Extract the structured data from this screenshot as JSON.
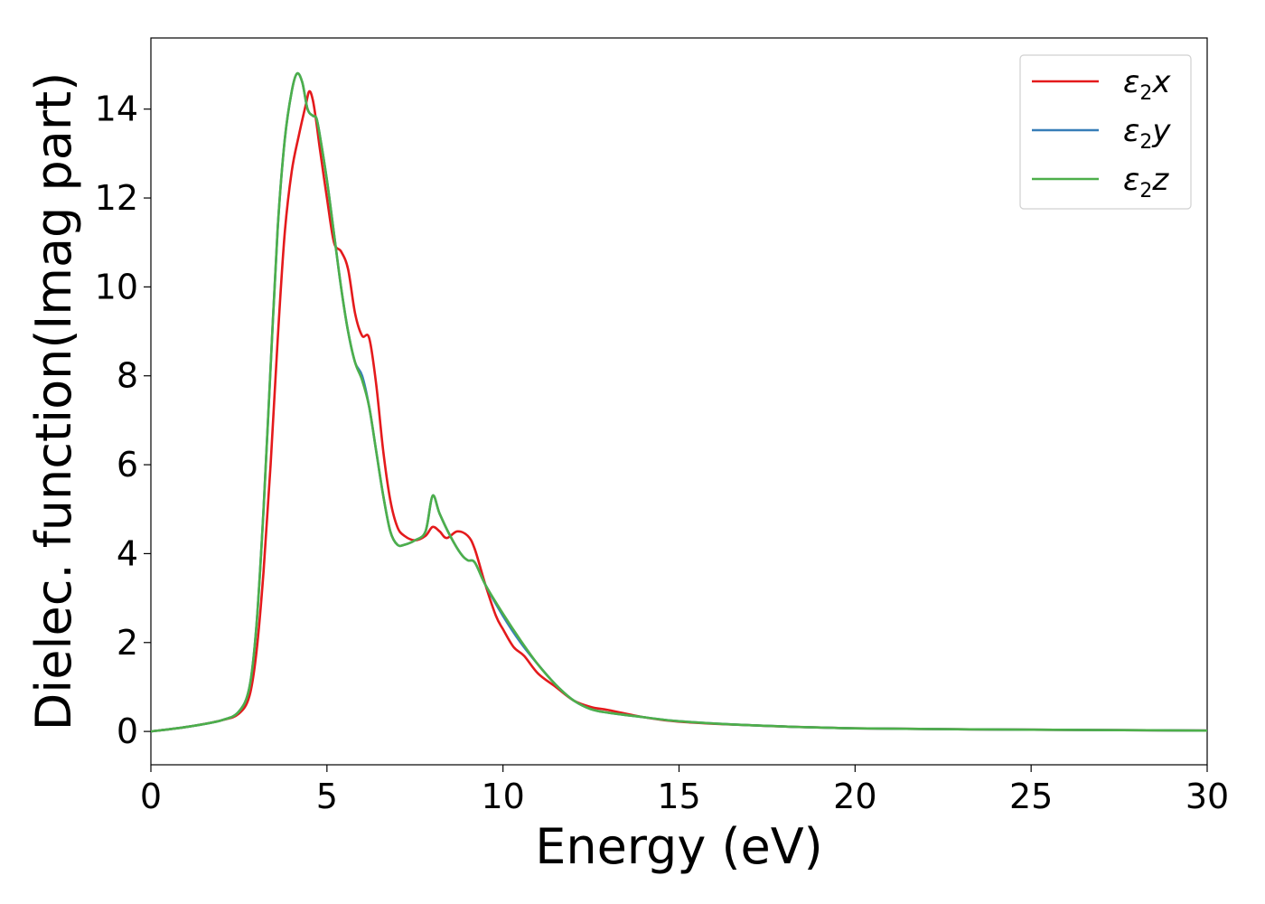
{
  "chart_data": {
    "type": "line",
    "xlabel": "Energy (eV)",
    "ylabel": "Dielec. function(Imag part)",
    "xlim": [
      0,
      30
    ],
    "ylim": [
      -0.75,
      15.6
    ],
    "xticks": [
      0,
      5,
      10,
      15,
      20,
      25,
      30
    ],
    "yticks": [
      0,
      2,
      4,
      6,
      8,
      10,
      12,
      14
    ],
    "grid": false,
    "legend_position": "top-right",
    "series": [
      {
        "name": "ε2x",
        "legend": {
          "base": "ε",
          "sub": "2",
          "var": "x"
        },
        "color": "#e41a1c",
        "x": [
          0,
          1,
          2,
          2.5,
          2.8,
          3.0,
          3.2,
          3.4,
          3.6,
          3.8,
          4.0,
          4.2,
          4.4,
          4.5,
          4.6,
          4.7,
          4.8,
          5.0,
          5.2,
          5.4,
          5.6,
          5.8,
          6.0,
          6.2,
          6.4,
          6.6,
          6.8,
          7.0,
          7.2,
          7.5,
          7.8,
          8.0,
          8.2,
          8.4,
          8.7,
          9.0,
          9.2,
          9.5,
          9.8,
          10.0,
          10.3,
          10.6,
          11.0,
          11.5,
          12.0,
          12.5,
          13.0,
          14.0,
          15.0,
          17.0,
          20.0,
          25.0,
          30.0
        ],
        "values": [
          0,
          0.1,
          0.25,
          0.4,
          0.8,
          1.8,
          3.6,
          6.0,
          8.8,
          11.2,
          12.6,
          13.4,
          14.1,
          14.4,
          14.2,
          13.7,
          13.1,
          12.0,
          11.0,
          10.8,
          10.4,
          9.4,
          8.9,
          8.85,
          7.8,
          6.3,
          5.2,
          4.6,
          4.4,
          4.3,
          4.4,
          4.6,
          4.5,
          4.35,
          4.5,
          4.4,
          4.1,
          3.3,
          2.6,
          2.3,
          1.9,
          1.7,
          1.3,
          1.0,
          0.7,
          0.55,
          0.48,
          0.32,
          0.22,
          0.14,
          0.07,
          0.04,
          0.02
        ]
      },
      {
        "name": "ε2y",
        "legend": {
          "base": "ε",
          "sub": "2",
          "var": "y"
        },
        "color": "#377eb8",
        "x": [
          0,
          1,
          2,
          2.5,
          2.8,
          3.0,
          3.2,
          3.4,
          3.6,
          3.8,
          4.0,
          4.15,
          4.3,
          4.45,
          4.6,
          4.7,
          4.8,
          5.0,
          5.2,
          5.4,
          5.6,
          5.8,
          6.0,
          6.2,
          6.4,
          6.6,
          6.8,
          7.0,
          7.2,
          7.5,
          7.8,
          8.0,
          8.2,
          8.5,
          8.8,
          9.0,
          9.2,
          9.5,
          10.0,
          10.5,
          11.0,
          11.5,
          12.0,
          12.5,
          13.0,
          14.0,
          15.0,
          17.0,
          20.0,
          25.0,
          30.0
        ],
        "values": [
          0,
          0.1,
          0.25,
          0.45,
          1.0,
          2.4,
          5.0,
          8.2,
          11.3,
          13.3,
          14.4,
          14.8,
          14.6,
          14.0,
          13.85,
          13.8,
          13.4,
          12.4,
          11.2,
          10.0,
          9.0,
          8.3,
          8.0,
          7.3,
          6.3,
          5.3,
          4.5,
          4.2,
          4.2,
          4.3,
          4.5,
          5.3,
          4.9,
          4.4,
          4.0,
          3.85,
          3.8,
          3.3,
          2.6,
          2.0,
          1.5,
          1.05,
          0.7,
          0.5,
          0.42,
          0.32,
          0.23,
          0.14,
          0.07,
          0.04,
          0.02
        ]
      },
      {
        "name": "ε2z",
        "legend": {
          "base": "ε",
          "sub": "2",
          "var": "z"
        },
        "color": "#4daf4a",
        "x": [
          0,
          1,
          2,
          2.5,
          2.8,
          3.0,
          3.2,
          3.4,
          3.6,
          3.8,
          4.0,
          4.15,
          4.3,
          4.45,
          4.6,
          4.7,
          4.8,
          5.0,
          5.2,
          5.4,
          5.6,
          5.8,
          6.0,
          6.2,
          6.4,
          6.6,
          6.8,
          7.0,
          7.2,
          7.5,
          7.8,
          8.0,
          8.2,
          8.5,
          8.8,
          9.0,
          9.2,
          9.5,
          10.0,
          10.5,
          11.0,
          11.5,
          12.0,
          12.5,
          13.0,
          14.0,
          15.0,
          17.0,
          20.0,
          25.0,
          30.0
        ],
        "values": [
          0,
          0.1,
          0.25,
          0.45,
          1.0,
          2.4,
          5.0,
          8.2,
          11.3,
          13.3,
          14.4,
          14.8,
          14.6,
          14.0,
          13.85,
          13.8,
          13.4,
          12.4,
          11.2,
          10.0,
          9.0,
          8.3,
          7.9,
          7.3,
          6.3,
          5.3,
          4.5,
          4.2,
          4.2,
          4.3,
          4.5,
          5.3,
          4.9,
          4.4,
          4.0,
          3.85,
          3.8,
          3.3,
          2.65,
          2.05,
          1.5,
          1.05,
          0.7,
          0.5,
          0.42,
          0.32,
          0.23,
          0.14,
          0.07,
          0.04,
          0.02
        ]
      }
    ]
  }
}
